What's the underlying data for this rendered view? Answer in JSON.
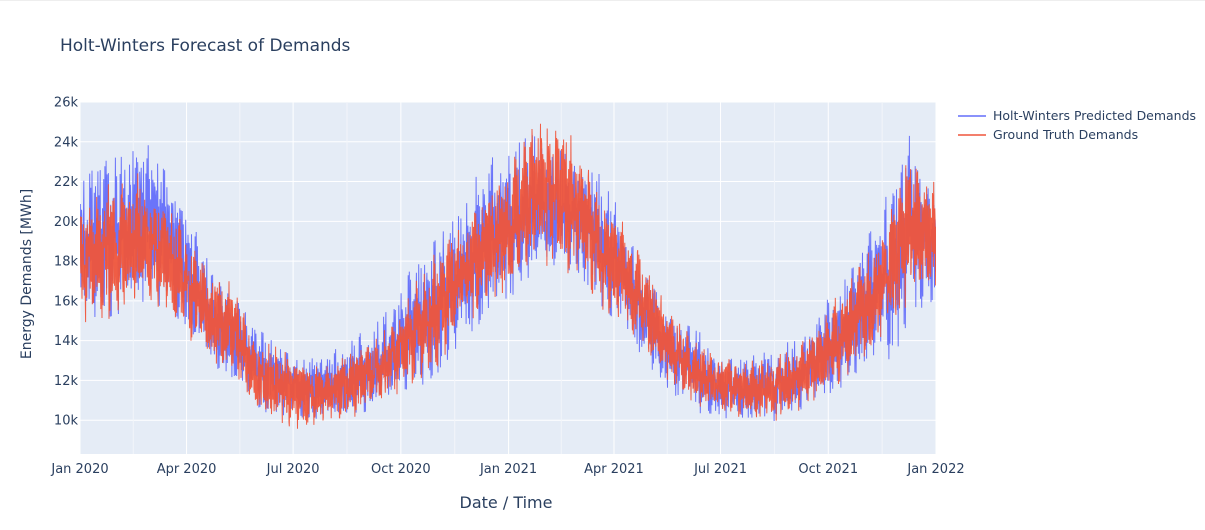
{
  "chart_data": {
    "type": "line",
    "title": "Holt-Winters Forecast of Demands",
    "xlabel": "Date / Time",
    "ylabel": "Energy Demands [MWh]",
    "x_range": [
      "2020-01-01",
      "2022-01-01"
    ],
    "ylim": [
      8300,
      26000
    ],
    "x_ticks": [
      {
        "date": "2020-01-01",
        "label": "Jan 2020"
      },
      {
        "date": "2020-04-01",
        "label": "Apr 2020"
      },
      {
        "date": "2020-07-01",
        "label": "Jul 2020"
      },
      {
        "date": "2020-10-01",
        "label": "Oct 2020"
      },
      {
        "date": "2021-01-01",
        "label": "Jan 2021"
      },
      {
        "date": "2021-04-01",
        "label": "Apr 2021"
      },
      {
        "date": "2021-07-01",
        "label": "Jul 2021"
      },
      {
        "date": "2021-10-01",
        "label": "Oct 2021"
      },
      {
        "date": "2022-01-01",
        "label": "Jan 2022"
      }
    ],
    "y_ticks": [
      {
        "value": 10000,
        "label": "10k"
      },
      {
        "value": 12000,
        "label": "12k"
      },
      {
        "value": 14000,
        "label": "14k"
      },
      {
        "value": 16000,
        "label": "16k"
      },
      {
        "value": 18000,
        "label": "18k"
      },
      {
        "value": 20000,
        "label": "20k"
      },
      {
        "value": 22000,
        "label": "22k"
      },
      {
        "value": 24000,
        "label": "24k"
      },
      {
        "value": 26000,
        "label": "26k"
      }
    ],
    "grid": true,
    "legend_position": "top-right",
    "series": [
      {
        "name": "Holt-Winters Predicted Demands",
        "color": "#636efa",
        "envelope": [
          {
            "date": "2020-01-01",
            "low": 15500,
            "high": 22000
          },
          {
            "date": "2020-01-20",
            "low": 15300,
            "high": 22800
          },
          {
            "date": "2020-02-10",
            "low": 15600,
            "high": 23200
          },
          {
            "date": "2020-02-25",
            "low": 16200,
            "high": 24400
          },
          {
            "date": "2020-03-15",
            "low": 15800,
            "high": 22200
          },
          {
            "date": "2020-04-01",
            "low": 14500,
            "high": 20500
          },
          {
            "date": "2020-04-20",
            "low": 13000,
            "high": 17800
          },
          {
            "date": "2020-05-10",
            "low": 12200,
            "high": 16200
          },
          {
            "date": "2020-06-01",
            "low": 10600,
            "high": 14500
          },
          {
            "date": "2020-06-20",
            "low": 10300,
            "high": 13600
          },
          {
            "date": "2020-07-10",
            "low": 10200,
            "high": 13100
          },
          {
            "date": "2020-08-01",
            "low": 10100,
            "high": 13300
          },
          {
            "date": "2020-08-20",
            "low": 10300,
            "high": 14000
          },
          {
            "date": "2020-09-15",
            "low": 10800,
            "high": 15000
          },
          {
            "date": "2020-10-10",
            "low": 11500,
            "high": 17500
          },
          {
            "date": "2020-11-01",
            "low": 12500,
            "high": 19000
          },
          {
            "date": "2020-11-20",
            "low": 14000,
            "high": 20200
          },
          {
            "date": "2020-12-10",
            "low": 15200,
            "high": 22800
          },
          {
            "date": "2021-01-01",
            "low": 16000,
            "high": 23400
          },
          {
            "date": "2021-01-20",
            "low": 17500,
            "high": 24200
          },
          {
            "date": "2021-02-10",
            "low": 17800,
            "high": 23600
          },
          {
            "date": "2021-03-01",
            "low": 17600,
            "high": 22800
          },
          {
            "date": "2021-03-20",
            "low": 16000,
            "high": 22200
          },
          {
            "date": "2021-04-10",
            "low": 14500,
            "high": 20000
          },
          {
            "date": "2021-05-01",
            "low": 12800,
            "high": 17000
          },
          {
            "date": "2021-05-20",
            "low": 11500,
            "high": 15000
          },
          {
            "date": "2021-06-10",
            "low": 10500,
            "high": 14500
          },
          {
            "date": "2021-07-01",
            "low": 10200,
            "high": 13400
          },
          {
            "date": "2021-07-20",
            "low": 10100,
            "high": 13000
          },
          {
            "date": "2021-08-15",
            "low": 10000,
            "high": 13500
          },
          {
            "date": "2021-09-10",
            "low": 10600,
            "high": 14200
          },
          {
            "date": "2021-10-01",
            "low": 11200,
            "high": 16000
          },
          {
            "date": "2021-10-20",
            "low": 12200,
            "high": 17500
          },
          {
            "date": "2021-11-10",
            "low": 13500,
            "high": 19800
          },
          {
            "date": "2021-11-25",
            "low": 13200,
            "high": 21800
          },
          {
            "date": "2021-12-10",
            "low": 15500,
            "high": 24200
          },
          {
            "date": "2021-12-25",
            "low": 16000,
            "high": 22000
          },
          {
            "date": "2022-01-01",
            "low": 16200,
            "high": 21000
          }
        ]
      },
      {
        "name": "Ground Truth Demands",
        "color": "#ef553b",
        "envelope": [
          {
            "date": "2020-01-01",
            "low": 15000,
            "high": 21000
          },
          {
            "date": "2020-01-20",
            "low": 15200,
            "high": 21600
          },
          {
            "date": "2020-02-10",
            "low": 15400,
            "high": 22000
          },
          {
            "date": "2020-02-25",
            "low": 16000,
            "high": 22400
          },
          {
            "date": "2020-03-15",
            "low": 15600,
            "high": 21200
          },
          {
            "date": "2020-04-01",
            "low": 14300,
            "high": 19500
          },
          {
            "date": "2020-04-20",
            "low": 13000,
            "high": 17500
          },
          {
            "date": "2020-05-10",
            "low": 12400,
            "high": 17000
          },
          {
            "date": "2020-06-01",
            "low": 10200,
            "high": 14000
          },
          {
            "date": "2020-06-20",
            "low": 9800,
            "high": 13500
          },
          {
            "date": "2020-07-10",
            "low": 9600,
            "high": 13000
          },
          {
            "date": "2020-08-01",
            "low": 10000,
            "high": 13000
          },
          {
            "date": "2020-08-20",
            "low": 10200,
            "high": 13600
          },
          {
            "date": "2020-09-15",
            "low": 10800,
            "high": 14400
          },
          {
            "date": "2020-10-10",
            "low": 11600,
            "high": 16500
          },
          {
            "date": "2020-11-01",
            "low": 12800,
            "high": 18500
          },
          {
            "date": "2020-11-20",
            "low": 14500,
            "high": 19800
          },
          {
            "date": "2020-12-10",
            "low": 15800,
            "high": 21200
          },
          {
            "date": "2021-01-01",
            "low": 16500,
            "high": 22500
          },
          {
            "date": "2021-01-20",
            "low": 17800,
            "high": 24800
          },
          {
            "date": "2021-02-10",
            "low": 18000,
            "high": 25000
          },
          {
            "date": "2021-03-01",
            "low": 17200,
            "high": 23800
          },
          {
            "date": "2021-03-20",
            "low": 15800,
            "high": 21000
          },
          {
            "date": "2021-04-10",
            "low": 14800,
            "high": 19800
          },
          {
            "date": "2021-05-01",
            "low": 13200,
            "high": 17500
          },
          {
            "date": "2021-05-20",
            "low": 11800,
            "high": 15500
          },
          {
            "date": "2021-06-10",
            "low": 10800,
            "high": 14000
          },
          {
            "date": "2021-07-01",
            "low": 10400,
            "high": 13200
          },
          {
            "date": "2021-07-20",
            "low": 10200,
            "high": 12800
          },
          {
            "date": "2021-08-15",
            "low": 10000,
            "high": 13200
          },
          {
            "date": "2021-09-10",
            "low": 10600,
            "high": 14000
          },
          {
            "date": "2021-10-01",
            "low": 11400,
            "high": 15800
          },
          {
            "date": "2021-10-20",
            "low": 12400,
            "high": 17200
          },
          {
            "date": "2021-11-10",
            "low": 13600,
            "high": 18800
          },
          {
            "date": "2021-11-25",
            "low": 14800,
            "high": 21000
          },
          {
            "date": "2021-12-10",
            "low": 16000,
            "high": 23200
          },
          {
            "date": "2021-12-25",
            "low": 16500,
            "high": 22500
          },
          {
            "date": "2022-01-01",
            "low": 16500,
            "high": 21800
          }
        ]
      }
    ]
  }
}
